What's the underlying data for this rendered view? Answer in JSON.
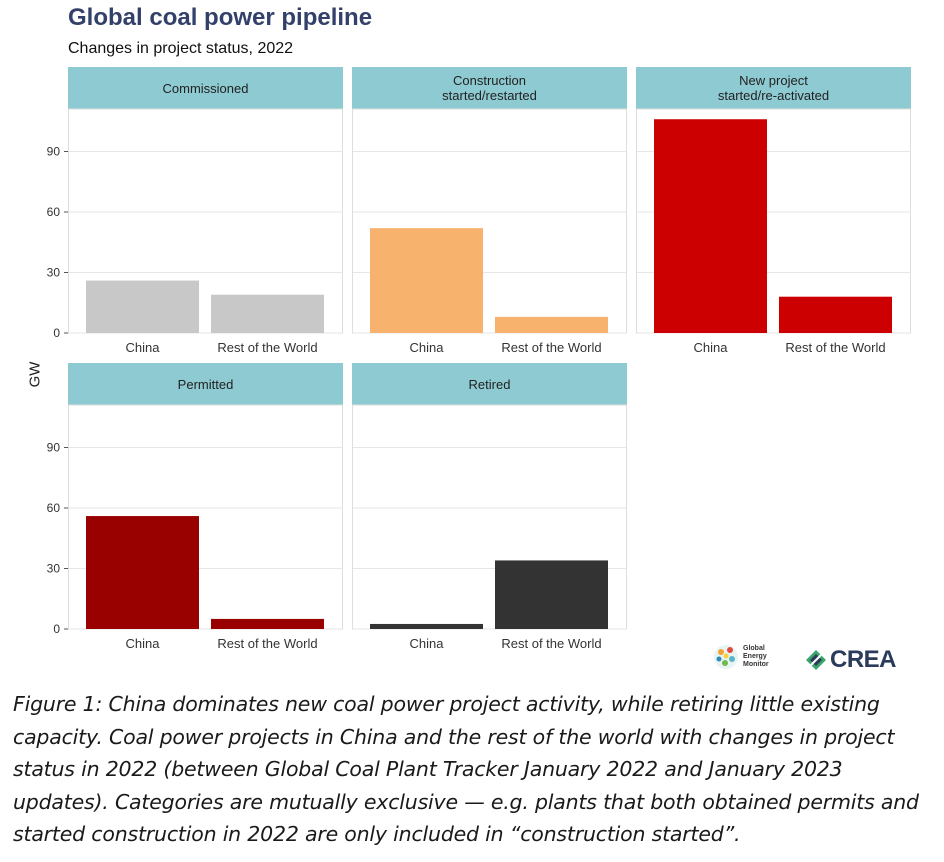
{
  "title": "Global coal power pipeline",
  "subtitle": "Changes in project status, 2022",
  "ylabel": "GW",
  "chart_data": {
    "type": "bar",
    "title": "Global coal power pipeline",
    "subtitle": "Changes in project status, 2022",
    "xlabel": "",
    "ylabel": "GW",
    "ylim": [
      0,
      110
    ],
    "yticks": [
      0,
      30,
      60,
      90
    ],
    "categories": [
      "China",
      "Rest of the World"
    ],
    "facets": [
      {
        "label": "Commissioned",
        "color": "#c8c8c8",
        "values": [
          26,
          19
        ]
      },
      {
        "label": "Construction\nstarted/restarted",
        "color": "#f7b26e",
        "values": [
          52,
          8
        ]
      },
      {
        "label": "New project\nstarted/re-activated",
        "color": "#cc0000",
        "values": [
          106,
          18
        ]
      },
      {
        "label": "Permitted",
        "color": "#990000",
        "values": [
          56,
          5
        ]
      },
      {
        "label": "Retired",
        "color": "#333333",
        "values": [
          2.5,
          34
        ]
      }
    ]
  },
  "logos": {
    "gem": "Global\nEnergy\nMonitor",
    "crea": "CREA"
  },
  "caption": "Figure 1: China dominates new coal power project activity, while retiring little existing capacity. Coal power projects in China and the rest of the world with changes in project status in 2022 (between Global Coal Plant Tracker January 2022 and January 2023 updates). Categories are mutually exclusive — e.g. plants that both obtained permits and started construction in 2022 are only included in “construction started”."
}
